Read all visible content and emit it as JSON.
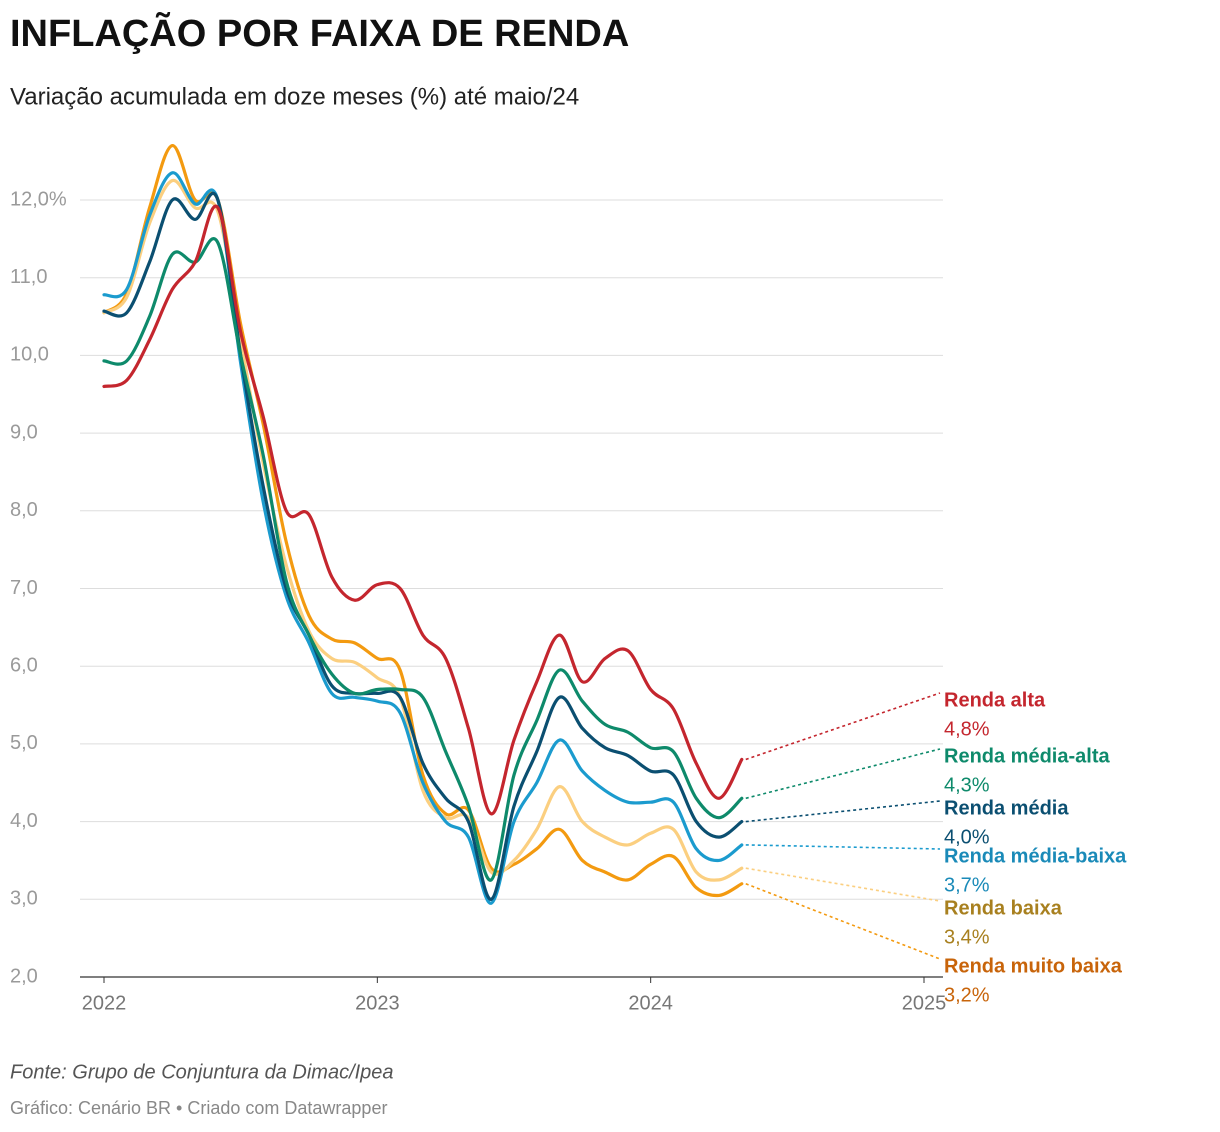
{
  "chart_data": {
    "type": "line",
    "title": "INFLAÇÃO POR FAIXA DE RENDA",
    "subtitle": "Variação acumulada em doze meses (%) até maio/24",
    "source": "Fonte: Grupo de Conjuntura da Dimac/Ipea",
    "credit": "Gráfico: Cenário BR • Criado com Datawrapper",
    "x": [
      2022,
      2022.0833,
      2022.1667,
      2022.25,
      2022.3333,
      2022.4167,
      2022.5,
      2022.5833,
      2022.6667,
      2022.75,
      2022.8333,
      2022.9167,
      2023,
      2023.0833,
      2023.1667,
      2023.25,
      2023.3333,
      2023.4167,
      2023.5,
      2023.5833,
      2023.6667,
      2023.75,
      2023.8333,
      2023.9167,
      2024,
      2024.0833,
      2024.1667,
      2024.25,
      2024.3333
    ],
    "xlim": [
      2022,
      2025
    ],
    "xticks": [
      2022,
      2023,
      2024,
      2025
    ],
    "ylim": [
      2,
      12.6
    ],
    "yticks": [
      {
        "value": 2,
        "label": "2,0"
      },
      {
        "value": 3,
        "label": "3,0"
      },
      {
        "value": 4,
        "label": "4,0"
      },
      {
        "value": 5,
        "label": "5,0"
      },
      {
        "value": 6,
        "label": "6,0"
      },
      {
        "value": 7,
        "label": "7,0"
      },
      {
        "value": 8,
        "label": "8,0"
      },
      {
        "value": 9,
        "label": "9,0"
      },
      {
        "value": 10,
        "label": "10,0"
      },
      {
        "value": 11,
        "label": "11,0"
      },
      {
        "value": 12,
        "label": "12,0%"
      }
    ],
    "grid": true,
    "series": [
      {
        "name": "Renda muito baixa",
        "color": "#f39a10",
        "label_color": "#c8640a",
        "values": [
          10.55,
          10.8,
          11.9,
          12.7,
          12.0,
          12.0,
          10.4,
          9.1,
          7.6,
          6.65,
          6.35,
          6.3,
          6.1,
          5.95,
          4.6,
          4.1,
          4.15,
          3.4,
          3.45,
          3.65,
          3.9,
          3.5,
          3.35,
          3.25,
          3.45,
          3.55,
          3.15,
          3.05,
          3.2
        ],
        "value_labels": [
          null,
          null,
          null,
          null,
          null,
          null,
          null,
          null,
          null,
          null,
          null,
          null,
          null,
          null,
          null,
          null,
          null,
          null,
          null,
          null,
          null,
          null,
          null,
          null,
          null,
          null,
          null,
          null,
          "3,2%"
        ]
      },
      {
        "name": "Renda baixa",
        "color": "#fbcf80",
        "label_color": "#a8801f",
        "values": [
          10.55,
          10.75,
          11.7,
          12.25,
          11.9,
          11.85,
          10.2,
          8.6,
          7.3,
          6.45,
          6.1,
          6.05,
          5.85,
          5.6,
          4.4,
          4.05,
          4.05,
          3.35,
          3.5,
          3.9,
          4.45,
          4.0,
          3.8,
          3.7,
          3.85,
          3.9,
          3.35,
          3.25,
          3.4
        ],
        "value_labels": [
          null,
          null,
          null,
          null,
          null,
          null,
          null,
          null,
          null,
          null,
          null,
          null,
          null,
          null,
          null,
          null,
          null,
          null,
          null,
          null,
          null,
          null,
          null,
          null,
          null,
          null,
          null,
          null,
          "3,4%"
        ]
      },
      {
        "name": "Renda média-baixa",
        "color": "#1b9bce",
        "label_color": "#1a8ab8",
        "values": [
          10.78,
          10.85,
          11.8,
          12.35,
          11.95,
          12.0,
          9.9,
          8.1,
          6.9,
          6.3,
          5.65,
          5.6,
          5.55,
          5.4,
          4.5,
          4.0,
          3.8,
          2.95,
          4.0,
          4.5,
          5.05,
          4.65,
          4.4,
          4.25,
          4.25,
          4.25,
          3.65,
          3.5,
          3.7
        ],
        "value_labels": [
          null,
          null,
          null,
          null,
          null,
          null,
          null,
          null,
          null,
          null,
          null,
          null,
          null,
          null,
          null,
          null,
          null,
          null,
          null,
          null,
          null,
          null,
          null,
          null,
          null,
          null,
          null,
          null,
          "3,7%"
        ]
      },
      {
        "name": "Renda média",
        "color": "#0b4f71",
        "label_color": "#0b4f71",
        "values": [
          10.57,
          10.55,
          11.2,
          12.0,
          11.75,
          12.0,
          10.0,
          8.3,
          7.0,
          6.4,
          5.75,
          5.65,
          5.65,
          5.6,
          4.75,
          4.3,
          4.0,
          3.0,
          4.2,
          4.9,
          5.6,
          5.2,
          4.95,
          4.85,
          4.65,
          4.6,
          4.0,
          3.8,
          4.0
        ],
        "value_labels": [
          null,
          null,
          null,
          null,
          null,
          null,
          null,
          null,
          null,
          null,
          null,
          null,
          null,
          null,
          null,
          null,
          null,
          null,
          null,
          null,
          null,
          null,
          null,
          null,
          null,
          null,
          null,
          null,
          "4,0%"
        ]
      },
      {
        "name": "Renda média-alta",
        "color": "#0e8a6b",
        "label_color": "#0e8a6b",
        "values": [
          9.93,
          9.93,
          10.5,
          11.3,
          11.2,
          11.45,
          10.0,
          8.7,
          7.1,
          6.4,
          5.9,
          5.65,
          5.7,
          5.7,
          5.6,
          4.9,
          4.2,
          3.25,
          4.6,
          5.3,
          5.95,
          5.55,
          5.25,
          5.15,
          4.95,
          4.9,
          4.3,
          4.05,
          4.3
        ],
        "value_labels": [
          null,
          null,
          null,
          null,
          null,
          null,
          null,
          null,
          null,
          null,
          null,
          null,
          null,
          null,
          null,
          null,
          null,
          null,
          null,
          null,
          null,
          null,
          null,
          null,
          null,
          null,
          null,
          null,
          "4,3%"
        ]
      },
      {
        "name": "Renda alta",
        "color": "#c4262e",
        "label_color": "#c4262e",
        "values": [
          9.6,
          9.68,
          10.2,
          10.85,
          11.2,
          11.9,
          10.3,
          9.2,
          8.0,
          7.95,
          7.15,
          6.85,
          7.05,
          7.0,
          6.4,
          6.1,
          5.2,
          4.1,
          5.05,
          5.8,
          6.4,
          5.8,
          6.1,
          6.2,
          5.7,
          5.45,
          4.75,
          4.3,
          4.8
        ],
        "value_labels": [
          null,
          null,
          null,
          null,
          null,
          null,
          null,
          null,
          null,
          null,
          null,
          null,
          null,
          null,
          null,
          null,
          null,
          null,
          null,
          null,
          null,
          null,
          null,
          null,
          null,
          null,
          null,
          null,
          "4,8%"
        ]
      }
    ]
  }
}
